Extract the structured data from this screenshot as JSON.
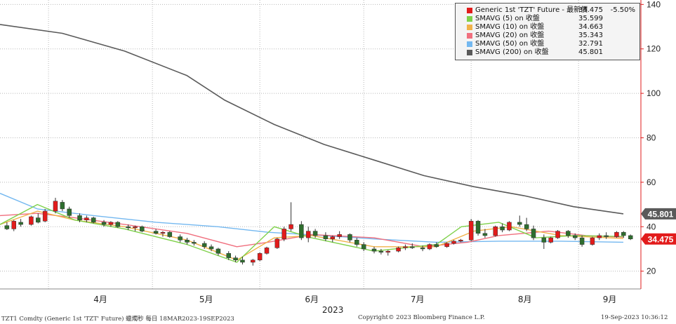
{
  "chart_data": {
    "type": "candlestick",
    "title": "",
    "year_label": "2023",
    "x_ticks": [
      "4月",
      "5月",
      "6月",
      "7月",
      "8月",
      "9月"
    ],
    "y_ticks": [
      20,
      40,
      60,
      80,
      100,
      120,
      140
    ],
    "ylim": [
      12,
      142
    ],
    "grid": true,
    "legend_position": "top-right",
    "last_price_tag": "34.475",
    "sma200_tag": "45.801",
    "candles_approx": [
      {
        "d": "03-20",
        "o": 40.5,
        "h": 42.0,
        "l": 38.5,
        "c": 39.0
      },
      {
        "d": "03-22",
        "o": 39.0,
        "h": 43.0,
        "l": 38.0,
        "c": 42.5
      },
      {
        "d": "03-24",
        "o": 42.0,
        "h": 43.5,
        "l": 40.0,
        "c": 41.0
      },
      {
        "d": "03-27",
        "o": 41.0,
        "h": 45.0,
        "l": 40.5,
        "c": 44.5
      },
      {
        "d": "03-29",
        "o": 44.0,
        "h": 46.0,
        "l": 41.5,
        "c": 42.0
      },
      {
        "d": "03-31",
        "o": 42.5,
        "h": 48.0,
        "l": 42.0,
        "c": 47.0
      },
      {
        "d": "04-03",
        "o": 47.0,
        "h": 53.0,
        "l": 46.0,
        "c": 51.5
      },
      {
        "d": "04-05",
        "o": 51.0,
        "h": 52.0,
        "l": 47.0,
        "c": 48.0
      },
      {
        "d": "04-07",
        "o": 48.0,
        "h": 49.0,
        "l": 44.0,
        "c": 45.0
      },
      {
        "d": "04-10",
        "o": 45.0,
        "h": 46.0,
        "l": 42.0,
        "c": 43.0
      },
      {
        "d": "04-12",
        "o": 43.0,
        "h": 45.0,
        "l": 42.0,
        "c": 44.0
      },
      {
        "d": "04-14",
        "o": 44.0,
        "h": 44.5,
        "l": 41.5,
        "c": 42.0
      },
      {
        "d": "04-17",
        "o": 42.0,
        "h": 43.0,
        "l": 40.0,
        "c": 41.0
      },
      {
        "d": "04-19",
        "o": 41.0,
        "h": 42.5,
        "l": 40.0,
        "c": 42.0
      },
      {
        "d": "04-21",
        "o": 42.0,
        "h": 42.5,
        "l": 39.5,
        "c": 40.0
      },
      {
        "d": "04-24",
        "o": 40.0,
        "h": 41.0,
        "l": 38.5,
        "c": 39.5
      },
      {
        "d": "04-26",
        "o": 39.5,
        "h": 40.5,
        "l": 38.0,
        "c": 40.0
      },
      {
        "d": "04-28",
        "o": 40.0,
        "h": 40.5,
        "l": 37.5,
        "c": 38.0
      },
      {
        "d": "05-02",
        "o": 38.0,
        "h": 39.0,
        "l": 36.5,
        "c": 37.0
      },
      {
        "d": "05-04",
        "o": 37.0,
        "h": 38.0,
        "l": 35.5,
        "c": 37.5
      },
      {
        "d": "05-06",
        "o": 37.5,
        "h": 38.0,
        "l": 35.0,
        "c": 35.5
      },
      {
        "d": "05-09",
        "o": 35.5,
        "h": 36.5,
        "l": 33.0,
        "c": 34.0
      },
      {
        "d": "05-11",
        "o": 34.0,
        "h": 35.0,
        "l": 32.0,
        "c": 33.0
      },
      {
        "d": "05-13",
        "o": 33.0,
        "h": 34.0,
        "l": 31.5,
        "c": 32.5
      },
      {
        "d": "05-16",
        "o": 32.5,
        "h": 33.5,
        "l": 30.0,
        "c": 31.0
      },
      {
        "d": "05-18",
        "o": 31.0,
        "h": 32.0,
        "l": 29.0,
        "c": 30.0
      },
      {
        "d": "05-20",
        "o": 30.0,
        "h": 30.5,
        "l": 27.0,
        "c": 28.0
      },
      {
        "d": "05-23",
        "o": 28.0,
        "h": 29.0,
        "l": 25.0,
        "c": 26.0
      },
      {
        "d": "05-25",
        "o": 26.0,
        "h": 27.0,
        "l": 24.0,
        "c": 25.0
      },
      {
        "d": "05-27",
        "o": 25.0,
        "h": 26.5,
        "l": 23.0,
        "c": 24.0
      },
      {
        "d": "05-30",
        "o": 24.0,
        "h": 25.5,
        "l": 22.5,
        "c": 25.0
      },
      {
        "d": "06-01",
        "o": 25.0,
        "h": 28.5,
        "l": 24.5,
        "c": 28.0
      },
      {
        "d": "06-03",
        "o": 28.0,
        "h": 31.0,
        "l": 27.5,
        "c": 30.5
      },
      {
        "d": "06-06",
        "o": 30.5,
        "h": 35.0,
        "l": 30.0,
        "c": 34.5
      },
      {
        "d": "06-08",
        "o": 34.5,
        "h": 40.0,
        "l": 33.5,
        "c": 39.0
      },
      {
        "d": "06-10",
        "o": 39.0,
        "h": 51.0,
        "l": 38.0,
        "c": 41.0
      },
      {
        "d": "06-13",
        "o": 41.0,
        "h": 42.5,
        "l": 34.0,
        "c": 35.0
      },
      {
        "d": "06-15",
        "o": 35.0,
        "h": 40.0,
        "l": 33.0,
        "c": 38.0
      },
      {
        "d": "06-17",
        "o": 38.0,
        "h": 39.0,
        "l": 35.0,
        "c": 36.0
      },
      {
        "d": "06-20",
        "o": 36.0,
        "h": 37.5,
        "l": 33.5,
        "c": 34.5
      },
      {
        "d": "06-22",
        "o": 34.5,
        "h": 36.0,
        "l": 33.0,
        "c": 35.5
      },
      {
        "d": "06-24",
        "o": 35.5,
        "h": 38.0,
        "l": 34.5,
        "c": 36.5
      },
      {
        "d": "06-27",
        "o": 36.5,
        "h": 37.0,
        "l": 33.0,
        "c": 34.0
      },
      {
        "d": "06-29",
        "o": 34.0,
        "h": 35.0,
        "l": 31.0,
        "c": 32.0
      },
      {
        "d": "07-01",
        "o": 32.0,
        "h": 33.0,
        "l": 29.0,
        "c": 30.0
      },
      {
        "d": "07-04",
        "o": 30.0,
        "h": 31.0,
        "l": 28.0,
        "c": 29.0
      },
      {
        "d": "07-06",
        "o": 29.0,
        "h": 30.0,
        "l": 27.5,
        "c": 28.5
      },
      {
        "d": "07-08",
        "o": 28.5,
        "h": 29.5,
        "l": 27.0,
        "c": 29.0
      },
      {
        "d": "07-11",
        "o": 29.0,
        "h": 31.0,
        "l": 28.5,
        "c": 30.5
      },
      {
        "d": "07-13",
        "o": 30.5,
        "h": 32.0,
        "l": 29.5,
        "c": 31.0
      },
      {
        "d": "07-15",
        "o": 31.0,
        "h": 32.5,
        "l": 30.0,
        "c": 30.5
      },
      {
        "d": "07-18",
        "o": 30.5,
        "h": 31.5,
        "l": 29.0,
        "c": 30.0
      },
      {
        "d": "07-20",
        "o": 30.0,
        "h": 32.5,
        "l": 29.5,
        "c": 32.0
      },
      {
        "d": "07-22",
        "o": 32.0,
        "h": 33.0,
        "l": 30.5,
        "c": 31.0
      },
      {
        "d": "07-25",
        "o": 31.0,
        "h": 33.0,
        "l": 30.5,
        "c": 32.5
      },
      {
        "d": "07-27",
        "o": 32.5,
        "h": 34.0,
        "l": 32.0,
        "c": 33.5
      },
      {
        "d": "07-29",
        "o": 33.5,
        "h": 34.5,
        "l": 33.0,
        "c": 34.0
      },
      {
        "d": "08-01",
        "o": 34.0,
        "h": 43.5,
        "l": 33.5,
        "c": 42.5
      },
      {
        "d": "08-03",
        "o": 42.5,
        "h": 43.0,
        "l": 36.0,
        "c": 37.0
      },
      {
        "d": "08-05",
        "o": 37.0,
        "h": 39.0,
        "l": 35.0,
        "c": 36.0
      },
      {
        "d": "08-08",
        "o": 36.0,
        "h": 40.5,
        "l": 35.5,
        "c": 40.0
      },
      {
        "d": "08-10",
        "o": 40.0,
        "h": 41.5,
        "l": 37.5,
        "c": 38.5
      },
      {
        "d": "08-12",
        "o": 38.5,
        "h": 42.5,
        "l": 38.0,
        "c": 42.0
      },
      {
        "d": "08-15",
        "o": 42.0,
        "h": 45.0,
        "l": 40.0,
        "c": 41.0
      },
      {
        "d": "08-17",
        "o": 41.0,
        "h": 44.0,
        "l": 38.0,
        "c": 39.0
      },
      {
        "d": "08-19",
        "o": 39.0,
        "h": 40.5,
        "l": 34.0,
        "c": 35.0
      },
      {
        "d": "08-22",
        "o": 35.0,
        "h": 36.5,
        "l": 30.0,
        "c": 33.0
      },
      {
        "d": "08-24",
        "o": 33.0,
        "h": 35.5,
        "l": 32.5,
        "c": 35.0
      },
      {
        "d": "08-26",
        "o": 35.0,
        "h": 38.5,
        "l": 34.5,
        "c": 38.0
      },
      {
        "d": "08-29",
        "o": 38.0,
        "h": 38.5,
        "l": 35.0,
        "c": 36.0
      },
      {
        "d": "08-31",
        "o": 36.0,
        "h": 37.0,
        "l": 34.0,
        "c": 35.0
      },
      {
        "d": "09-02",
        "o": 35.0,
        "h": 36.0,
        "l": 31.0,
        "c": 32.0
      },
      {
        "d": "09-05",
        "o": 32.0,
        "h": 35.5,
        "l": 31.5,
        "c": 35.0
      },
      {
        "d": "09-07",
        "o": 35.0,
        "h": 37.0,
        "l": 34.0,
        "c": 36.0
      },
      {
        "d": "09-09",
        "o": 36.0,
        "h": 37.5,
        "l": 34.5,
        "c": 35.5
      },
      {
        "d": "09-12",
        "o": 35.5,
        "h": 38.0,
        "l": 35.0,
        "c": 37.5
      },
      {
        "d": "09-14",
        "o": 37.5,
        "h": 38.0,
        "l": 35.0,
        "c": 36.0
      },
      {
        "d": "09-16",
        "o": 36.0,
        "h": 36.5,
        "l": 34.0,
        "c": 34.475
      }
    ],
    "sma200_path_approx": [
      [
        0,
        131
      ],
      [
        0.1,
        127
      ],
      [
        0.2,
        119
      ],
      [
        0.3,
        108
      ],
      [
        0.36,
        97
      ],
      [
        0.44,
        86
      ],
      [
        0.52,
        77
      ],
      [
        0.6,
        70
      ],
      [
        0.68,
        63
      ],
      [
        0.76,
        58
      ],
      [
        0.84,
        54
      ],
      [
        0.92,
        49
      ],
      [
        1.0,
        45.8
      ]
    ],
    "sma50_path_approx": [
      [
        0,
        55
      ],
      [
        0.06,
        48
      ],
      [
        0.15,
        45
      ],
      [
        0.25,
        42
      ],
      [
        0.35,
        40
      ],
      [
        0.43,
        37.5
      ],
      [
        0.52,
        36
      ],
      [
        0.6,
        34.5
      ],
      [
        0.7,
        33
      ],
      [
        0.8,
        33.5
      ],
      [
        0.9,
        33.5
      ],
      [
        1.0,
        33
      ]
    ],
    "sma20_path_approx": [
      [
        0,
        45
      ],
      [
        0.06,
        46
      ],
      [
        0.12,
        44
      ],
      [
        0.2,
        41
      ],
      [
        0.3,
        37
      ],
      [
        0.38,
        31
      ],
      [
        0.43,
        33
      ],
      [
        0.5,
        36.5
      ],
      [
        0.6,
        35
      ],
      [
        0.68,
        31
      ],
      [
        0.75,
        33
      ],
      [
        0.8,
        36
      ],
      [
        0.88,
        38
      ],
      [
        0.94,
        36
      ],
      [
        1.0,
        35.3
      ]
    ],
    "sma10_path_approx": [
      [
        0,
        41
      ],
      [
        0.06,
        47
      ],
      [
        0.12,
        43
      ],
      [
        0.2,
        40
      ],
      [
        0.3,
        34
      ],
      [
        0.38,
        25
      ],
      [
        0.44,
        35
      ],
      [
        0.5,
        36
      ],
      [
        0.6,
        31
      ],
      [
        0.7,
        31
      ],
      [
        0.76,
        38
      ],
      [
        0.82,
        40
      ],
      [
        0.9,
        36
      ],
      [
        1.0,
        34.7
      ]
    ],
    "sma5_path_approx": [
      [
        0,
        41
      ],
      [
        0.06,
        50
      ],
      [
        0.12,
        43
      ],
      [
        0.2,
        39
      ],
      [
        0.3,
        32
      ],
      [
        0.38,
        24
      ],
      [
        0.44,
        40
      ],
      [
        0.5,
        35
      ],
      [
        0.6,
        29
      ],
      [
        0.7,
        32
      ],
      [
        0.74,
        40
      ],
      [
        0.8,
        42
      ],
      [
        0.86,
        35
      ],
      [
        0.92,
        36
      ],
      [
        1.0,
        35.6
      ]
    ]
  },
  "legend": {
    "items": [
      {
        "name": "Generic 1st 'TZT' Future - 最新價",
        "value": "34.475",
        "change": "-5.50%",
        "color": "#e21b1b"
      },
      {
        "name": "SMAVG (5)  on 收盤",
        "value": "35.599",
        "color": "#7fd14a"
      },
      {
        "name": "SMAVG (10)  on 收盤",
        "value": "34.663",
        "color": "#f0b24a"
      },
      {
        "name": "SMAVG (20)  on 收盤",
        "value": "35.343",
        "color": "#f06f7e"
      },
      {
        "name": "SMAVG (50)  on 收盤",
        "value": "32.791",
        "color": "#74b8f0"
      },
      {
        "name": "SMAVG (200)  on 收盤",
        "value": "45.801",
        "color": "#5a5a5a"
      }
    ]
  },
  "footer": {
    "left": "TZT1 Comdty (Generic 1st 'TZT' Future) 蠟燭秒  每日 18MAR2023-19SEP2023",
    "center": "Copyright© 2023 Bloomberg Finance L.P.",
    "right": "19-Sep-2023 10:36:12"
  }
}
